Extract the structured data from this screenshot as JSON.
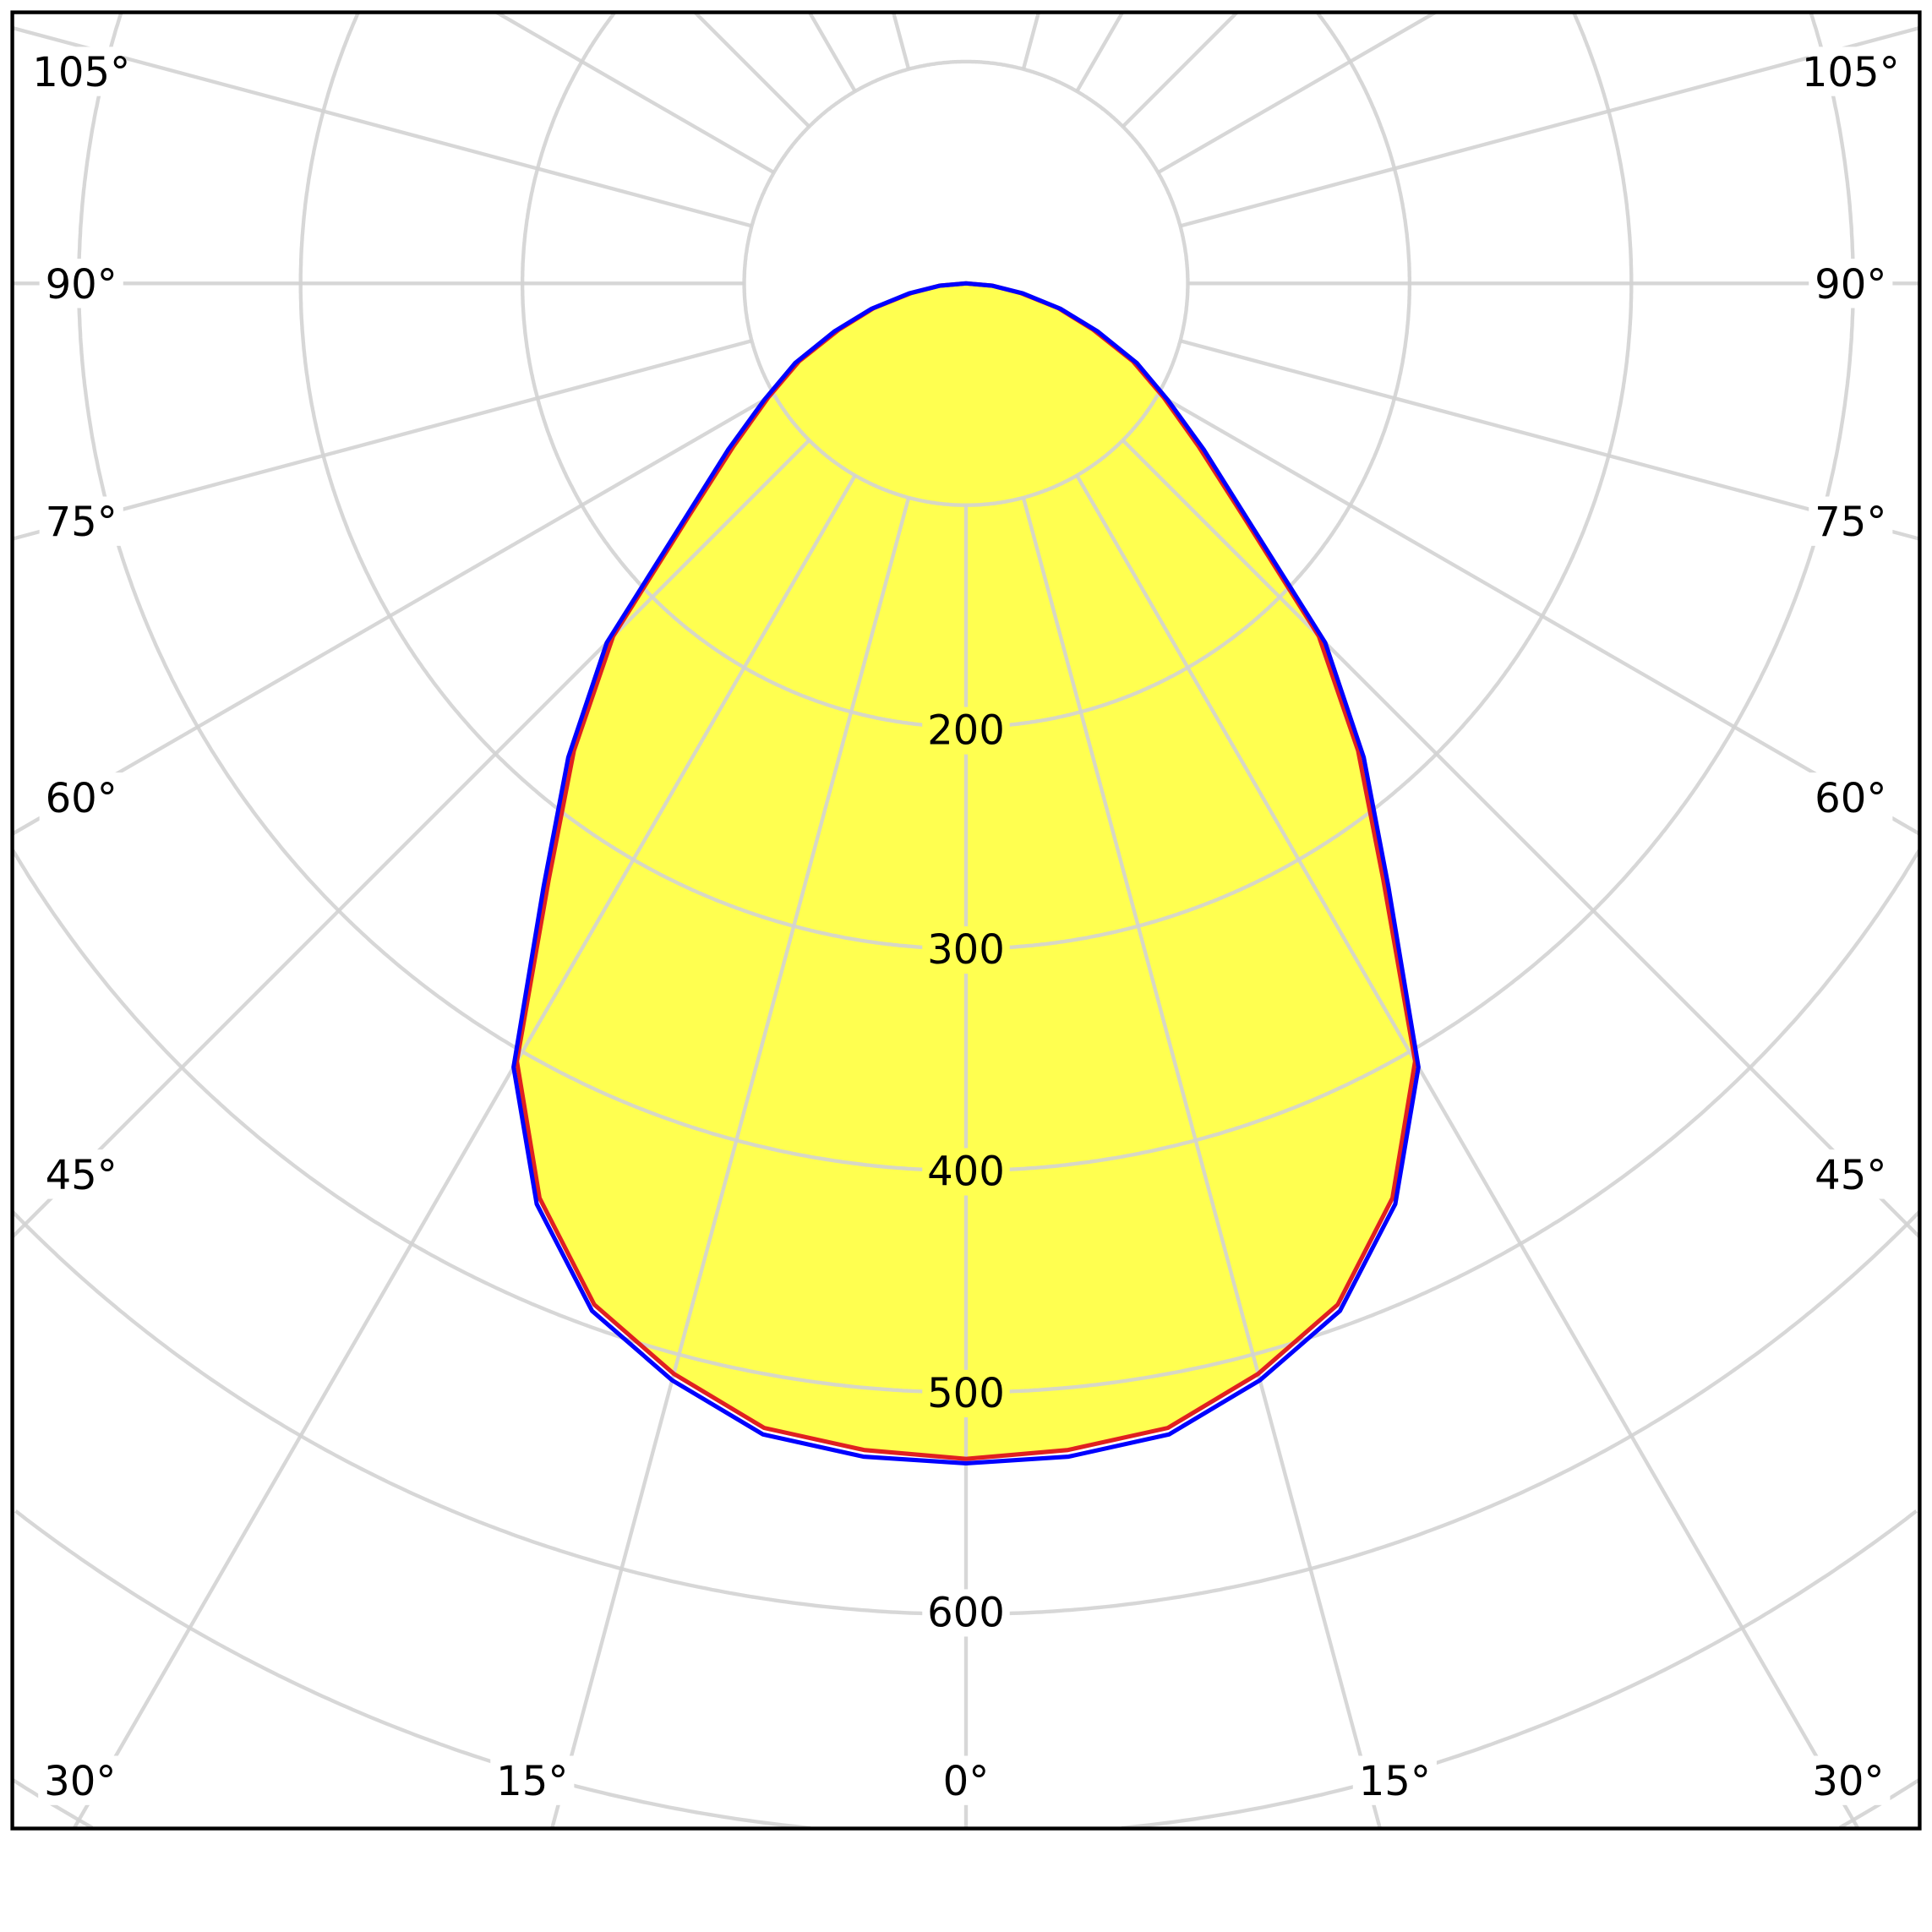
{
  "chart_data": {
    "type": "polar",
    "radial_unit_labels": [
      "200",
      "300",
      "400",
      "500",
      "600"
    ],
    "radial_rings": [
      100,
      200,
      300,
      400,
      500,
      600,
      700,
      800
    ],
    "angle_labels_left": [
      "105°",
      "90°",
      "75°",
      "60°",
      "45°"
    ],
    "angle_labels_right": [
      "105°",
      "90°",
      "75°",
      "60°",
      "45°"
    ],
    "angle_labels_bottom": [
      "30°",
      "15°",
      "0°",
      "15°",
      "30°"
    ],
    "angles": [
      0,
      5,
      10,
      15,
      20,
      25,
      30,
      35,
      40,
      45,
      50,
      55,
      60,
      65,
      70,
      75,
      80,
      85,
      90
    ],
    "series": [
      {
        "color": "#e02020",
        "values": [
          530,
          528,
          524,
          509,
          490,
          455,
          405,
          328,
          275,
          225,
          163,
          128,
          103,
          83,
          61,
          43,
          25,
          12,
          0
        ]
      },
      {
        "color": "#0000ff",
        "values": [
          532,
          531,
          527,
          512,
          493,
          458,
          408,
          332,
          279,
          229,
          166,
          131,
          105,
          85,
          63,
          44,
          26,
          12,
          0
        ]
      }
    ],
    "fill_color": "#ffff50",
    "grid_color": "#d3d3d3",
    "grid": true
  }
}
